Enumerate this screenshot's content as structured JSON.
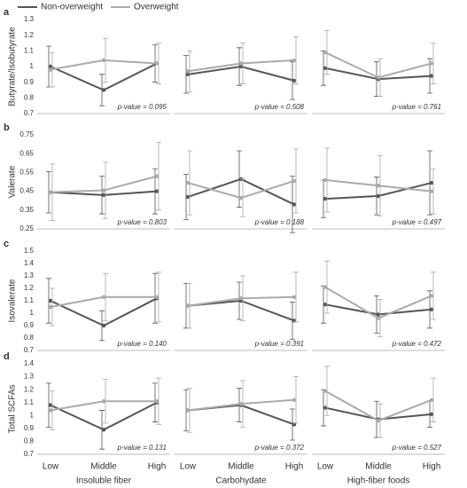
{
  "chart_data": [
    {
      "type": "line",
      "label": "a",
      "ylabel": "Butyrate/Isobutyrate",
      "ylim": [
        0.7,
        1.3
      ],
      "yticks": [
        0.7,
        0.8,
        0.9,
        1,
        1.1,
        1.2,
        1.3
      ],
      "annotation": "p-value = 0.095",
      "series": [
        {
          "name": "Non-overweight",
          "color": "#555555",
          "values": [
            1.0,
            0.85,
            1.02
          ],
          "errors": [
            0.13,
            0.1,
            0.12
          ]
        },
        {
          "name": "Overweight",
          "color": "#aaaaaa",
          "values": [
            0.98,
            1.04,
            1.02
          ],
          "errors": [
            0.11,
            0.14,
            0.13
          ]
        }
      ]
    },
    {
      "type": "line",
      "ylim": [
        0.7,
        1.3
      ],
      "annotation": "p-value = 0.508",
      "series": [
        {
          "name": "Non-overweight",
          "color": "#555555",
          "values": [
            0.95,
            1.0,
            0.91
          ],
          "errors": [
            0.12,
            0.12,
            0.12
          ]
        },
        {
          "name": "Overweight",
          "color": "#aaaaaa",
          "values": [
            0.97,
            1.02,
            1.04
          ],
          "errors": [
            0.13,
            0.13,
            0.15
          ]
        }
      ]
    },
    {
      "type": "line",
      "ylim": [
        0.7,
        1.3
      ],
      "annotation": "p-value = 0.761",
      "series": [
        {
          "name": "Non-overweight",
          "color": "#555555",
          "values": [
            0.99,
            0.92,
            0.94
          ],
          "errors": [
            0.11,
            0.11,
            0.11
          ]
        },
        {
          "name": "Overweight",
          "color": "#aaaaaa",
          "values": [
            1.09,
            0.93,
            1.02
          ],
          "errors": [
            0.14,
            0.12,
            0.13
          ]
        }
      ]
    },
    {
      "type": "line",
      "label": "b",
      "ylabel": "Valerate",
      "ylim": [
        0.25,
        0.75
      ],
      "yticks": [
        0.25,
        0.35,
        0.45,
        0.55,
        0.65,
        0.75
      ],
      "annotation": "p-value = 0.803",
      "series": [
        {
          "name": "Non-overweight",
          "color": "#555555",
          "values": [
            0.445,
            0.43,
            0.45
          ],
          "errors": [
            0.11,
            0.1,
            0.12
          ]
        },
        {
          "name": "Overweight",
          "color": "#aaaaaa",
          "values": [
            0.445,
            0.455,
            0.53
          ],
          "errors": [
            0.15,
            0.15,
            0.18
          ]
        }
      ]
    },
    {
      "type": "line",
      "ylim": [
        0.25,
        0.75
      ],
      "annotation": "p-value = 0.188",
      "series": [
        {
          "name": "Non-overweight",
          "color": "#555555",
          "values": [
            0.42,
            0.515,
            0.38
          ],
          "errors": [
            0.12,
            0.15,
            0.15
          ]
        },
        {
          "name": "Overweight",
          "color": "#aaaaaa",
          "values": [
            0.495,
            0.415,
            0.505
          ],
          "errors": [
            0.17,
            0.1,
            0.17
          ]
        }
      ]
    },
    {
      "type": "line",
      "ylim": [
        0.25,
        0.75
      ],
      "annotation": "p-value = 0.497",
      "series": [
        {
          "name": "Non-overweight",
          "color": "#555555",
          "values": [
            0.41,
            0.425,
            0.495
          ],
          "errors": [
            0.1,
            0.1,
            0.17
          ]
        },
        {
          "name": "Overweight",
          "color": "#aaaaaa",
          "values": [
            0.51,
            0.48,
            0.45
          ],
          "errors": [
            0.17,
            0.16,
            0.12
          ]
        }
      ]
    },
    {
      "type": "line",
      "label": "c",
      "ylabel": "Isovalerate",
      "ylim": [
        0.7,
        1.5
      ],
      "yticks": [
        0.7,
        0.8,
        0.9,
        1,
        1.1,
        1.2,
        1.3,
        1.4,
        1.5
      ],
      "annotation": "p-value = 0.140",
      "series": [
        {
          "name": "Non-overweight",
          "color": "#555555",
          "values": [
            1.1,
            0.9,
            1.12
          ],
          "errors": [
            0.18,
            0.12,
            0.2
          ]
        },
        {
          "name": "Overweight",
          "color": "#aaaaaa",
          "values": [
            1.05,
            1.13,
            1.13
          ],
          "errors": [
            0.15,
            0.19,
            0.2
          ]
        }
      ]
    },
    {
      "type": "line",
      "ylim": [
        0.7,
        1.5
      ],
      "annotation": "p-value = 0.391",
      "series": [
        {
          "name": "Non-overweight",
          "color": "#555555",
          "values": [
            1.06,
            1.1,
            0.94
          ],
          "errors": [
            0.18,
            0.15,
            0.15
          ]
        },
        {
          "name": "Overweight",
          "color": "#aaaaaa",
          "values": [
            1.06,
            1.12,
            1.13
          ],
          "errors": [
            0.18,
            0.18,
            0.2
          ]
        }
      ]
    },
    {
      "type": "line",
      "ylim": [
        0.7,
        1.5
      ],
      "annotation": "p-value = 0.472",
      "series": [
        {
          "name": "Non-overweight",
          "color": "#555555",
          "values": [
            1.07,
            0.99,
            1.03
          ],
          "errors": [
            0.15,
            0.15,
            0.15
          ]
        },
        {
          "name": "Overweight",
          "color": "#aaaaaa",
          "values": [
            1.21,
            0.96,
            1.14
          ],
          "errors": [
            0.21,
            0.15,
            0.19
          ]
        }
      ]
    },
    {
      "type": "line",
      "label": "d",
      "ylabel": "Total SCFAs",
      "ylim": [
        0.7,
        1.4
      ],
      "yticks": [
        0.7,
        0.8,
        0.9,
        1,
        1.1,
        1.2,
        1.3,
        1.4
      ],
      "annotation": "p-value = 0.131",
      "categories": [
        "Low",
        "Middle",
        "High"
      ],
      "xlabel": "Insoluble fiber",
      "series": [
        {
          "name": "Non-overweight",
          "color": "#555555",
          "values": [
            1.08,
            0.89,
            1.1
          ],
          "errors": [
            0.17,
            0.15,
            0.15
          ]
        },
        {
          "name": "Overweight",
          "color": "#aaaaaa",
          "values": [
            1.04,
            1.11,
            1.11
          ],
          "errors": [
            0.15,
            0.17,
            0.18
          ]
        }
      ]
    },
    {
      "type": "line",
      "ylim": [
        0.7,
        1.4
      ],
      "annotation": "p-value = 0.372",
      "categories": [
        "Low",
        "Middle",
        "High"
      ],
      "xlabel": "Carbohydate",
      "series": [
        {
          "name": "Non-overweight",
          "color": "#555555",
          "values": [
            1.04,
            1.08,
            0.93
          ],
          "errors": [
            0.16,
            0.13,
            0.12
          ]
        },
        {
          "name": "Overweight",
          "color": "#aaaaaa",
          "values": [
            1.04,
            1.09,
            1.12
          ],
          "errors": [
            0.17,
            0.18,
            0.18
          ]
        }
      ]
    },
    {
      "type": "line",
      "ylim": [
        0.7,
        1.4
      ],
      "annotation": "p-value = 0.527",
      "categories": [
        "Low",
        "Middle",
        "High"
      ],
      "xlabel": "High-fiber foods",
      "series": [
        {
          "name": "Non-overweight",
          "color": "#555555",
          "values": [
            1.06,
            0.97,
            1.01
          ],
          "errors": [
            0.14,
            0.14,
            0.1
          ]
        },
        {
          "name": "Overweight",
          "color": "#aaaaaa",
          "values": [
            1.19,
            0.96,
            1.12
          ],
          "errors": [
            0.19,
            0.13,
            0.17
          ]
        }
      ]
    }
  ]
}
